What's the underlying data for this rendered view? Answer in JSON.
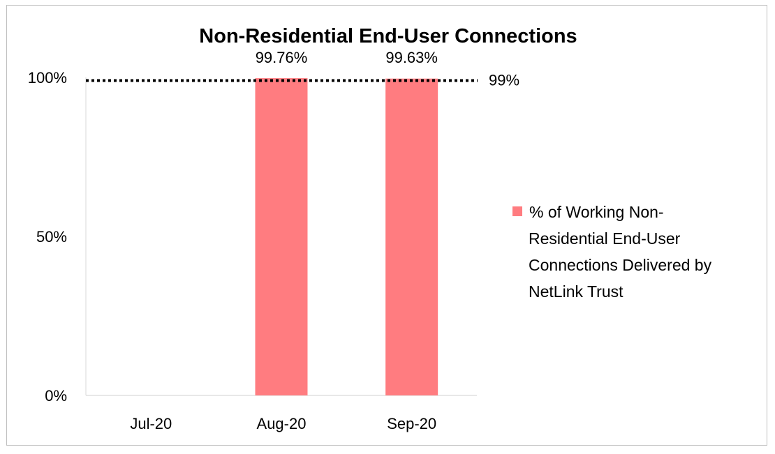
{
  "chart_data": {
    "type": "bar",
    "title": "Non-Residential End-User Connections",
    "xlabel": "",
    "ylabel": "",
    "categories": [
      "Jul-20",
      "Aug-20",
      "Sep-20"
    ],
    "series": [
      {
        "name": "% of Working Non-Residential End-User Connections Delivered by NetLink Trust",
        "values": [
          null,
          99.76,
          99.63
        ],
        "data_labels": [
          "",
          "99.76%",
          "99.63%"
        ],
        "color": "#ff7c80"
      }
    ],
    "yticks": [
      {
        "value": 0,
        "label": "0%"
      },
      {
        "value": 50,
        "label": "50%"
      },
      {
        "value": 100,
        "label": "100%"
      }
    ],
    "ylim": [
      0,
      100
    ],
    "target": {
      "value": 99,
      "label": "99%",
      "style": "dotted",
      "color": "#000000"
    },
    "grid": false,
    "legend_position": "right",
    "legend_lines": [
      "% of Working Non-",
      "Residential End-User",
      "Connections Delivered by",
      "NetLink Trust"
    ]
  }
}
